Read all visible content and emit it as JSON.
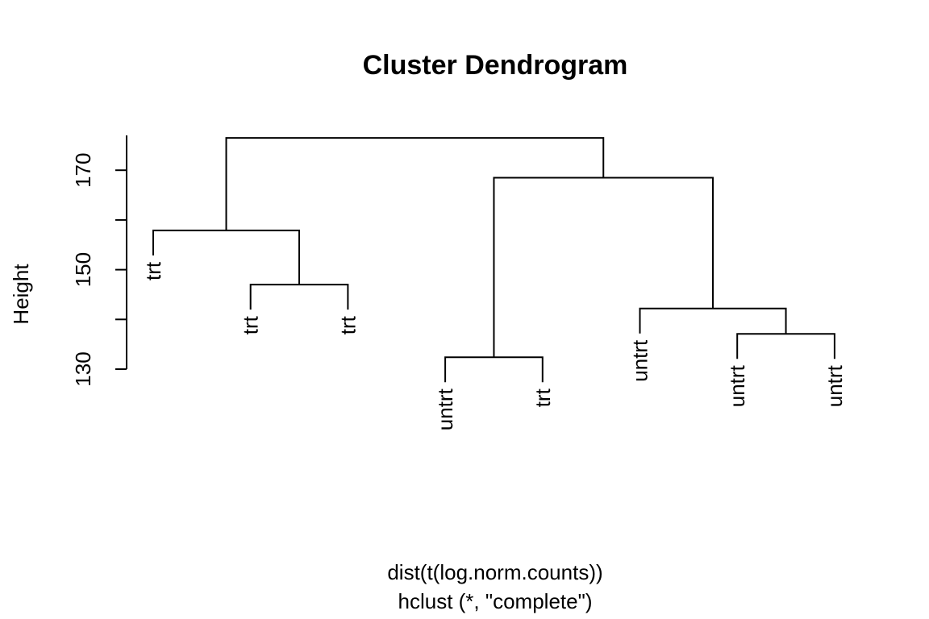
{
  "chart_data": {
    "type": "dendrogram",
    "title": "Cluster Dendrogram",
    "ylabel": "Height",
    "xlabel": "dist(t(log.norm.counts))",
    "sublabel": "hclust (*, \"complete\")",
    "y_ticks": [
      130,
      140,
      150,
      160,
      170
    ],
    "y_tick_labels": [
      "130",
      "",
      "150",
      "",
      "170"
    ],
    "ylim": [
      130,
      177
    ],
    "leaves": [
      "trt",
      "trt",
      "trt",
      "untrt",
      "trt",
      "untrt",
      "untrt",
      "untrt"
    ],
    "merges": [
      {
        "left": 2,
        "right": 3,
        "height": 147
      },
      {
        "left": 1,
        "right": "m0",
        "height": 157.9
      },
      {
        "left": 4,
        "right": 5,
        "height": 132.4
      },
      {
        "left": 7,
        "right": 8,
        "height": 137.1
      },
      {
        "left": 6,
        "right": "m3",
        "height": 142.2
      },
      {
        "left": "m2",
        "right": "m4",
        "height": 168.5
      },
      {
        "left": "m1",
        "right": "m5",
        "height": 176.5
      }
    ]
  }
}
